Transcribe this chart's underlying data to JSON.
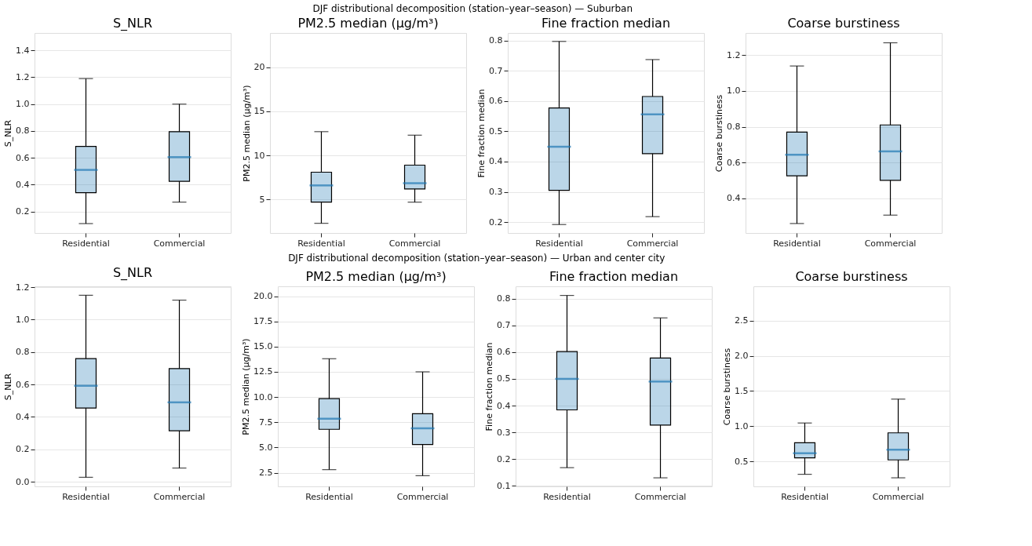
{
  "chart_data": [
    {
      "type": "box",
      "title": "S_NLR",
      "ylabel": "S_NLR",
      "annotations": [
        "DJF distributional decomposition (station–year–season) — Suburban"
      ],
      "categories": [
        "Residential",
        "Commercial"
      ],
      "ylim": [
        0.04,
        1.53
      ],
      "yticks": [
        0.2,
        0.4,
        0.6,
        0.8,
        {
          "value": 1.0,
          "label": "1.0"
        },
        1.2,
        1.4
      ],
      "grid": "y",
      "series": [
        {
          "color": "#1f77b4",
          "boxes": [
            {
              "low": 0.11,
              "q1": 0.34,
              "median": 0.51,
              "q3": 0.685,
              "high": 1.19
            },
            {
              "low": 0.27,
              "q1": 0.425,
              "median": 0.605,
              "q3": 0.795,
              "high": 1.0
            }
          ]
        }
      ]
    },
    {
      "type": "box",
      "title": "PM2.5 median (µg/m³)",
      "ylabel": "PM2.5 median (µg/m³)",
      "categories": [
        "Residential",
        "Commercial"
      ],
      "ylim": [
        1.2,
        23.9
      ],
      "yticks": [
        5,
        10,
        15,
        20
      ],
      "grid": "y",
      "series": [
        {
          "color": "#1f77b4",
          "boxes": [
            {
              "low": 2.3,
              "q1": 4.7,
              "median": 6.6,
              "q3": 8.1,
              "high": 12.7
            },
            {
              "low": 4.7,
              "q1": 6.2,
              "median": 6.85,
              "q3": 8.9,
              "high": 12.3
            }
          ]
        }
      ]
    },
    {
      "type": "box",
      "title": "Fine fraction median",
      "ylabel": "Fine fraction median",
      "categories": [
        "Residential",
        "Commercial"
      ],
      "ylim": [
        0.164,
        0.825
      ],
      "yticks": [
        0.2,
        0.3,
        0.4,
        0.5,
        0.6,
        0.7,
        0.8
      ],
      "grid": "y",
      "series": [
        {
          "color": "#1f77b4",
          "boxes": [
            {
              "low": 0.192,
              "q1": 0.305,
              "median": 0.449,
              "q3": 0.577,
              "high": 0.797
            },
            {
              "low": 0.218,
              "q1": 0.426,
              "median": 0.556,
              "q3": 0.615,
              "high": 0.737
            }
          ]
        }
      ]
    },
    {
      "type": "box",
      "title": "Coarse burstiness",
      "ylabel": "Coarse burstiness",
      "categories": [
        "Residential",
        "Commercial"
      ],
      "ylim": [
        0.205,
        1.325
      ],
      "yticks": [
        0.4,
        0.6,
        0.8,
        {
          "value": 1.0,
          "label": "1.0"
        },
        1.2
      ],
      "grid": "y",
      "series": [
        {
          "color": "#1f77b4",
          "boxes": [
            {
              "low": 0.258,
              "q1": 0.525,
              "median": 0.643,
              "q3": 0.77,
              "high": 1.14
            },
            {
              "low": 0.305,
              "q1": 0.5,
              "median": 0.662,
              "q3": 0.81,
              "high": 1.27
            }
          ]
        }
      ]
    },
    {
      "type": "box",
      "title": "S_NLR",
      "ylabel": "S_NLR",
      "annotations": [
        "DJF distributional decomposition (station–year–season) — Urban and center city"
      ],
      "categories": [
        "Residential",
        "Commercial"
      ],
      "ylim": [
        -0.028,
        1.205
      ],
      "yticks": [
        {
          "value": 0,
          "label": "0.0"
        },
        0.2,
        0.4,
        0.6,
        0.8,
        {
          "value": 1.0,
          "label": "1.0"
        },
        1.2
      ],
      "grid": "y",
      "series": [
        {
          "color": "#1f77b4",
          "boxes": [
            {
              "low": 0.028,
              "q1": 0.455,
              "median": 0.592,
              "q3": 0.76,
              "high": 1.15
            },
            {
              "low": 0.085,
              "q1": 0.315,
              "median": 0.49,
              "q3": 0.698,
              "high": 1.12
            }
          ]
        }
      ]
    },
    {
      "type": "box",
      "title": "PM2.5 median (µg/m³)",
      "ylabel": "PM2.5 median (µg/m³)",
      "categories": [
        "Residential",
        "Commercial"
      ],
      "ylim": [
        1.14,
        20.98
      ],
      "yticks": [
        2.5,
        {
          "value": 5,
          "label": "5.0"
        },
        7.5,
        {
          "value": 10,
          "label": "10.0"
        },
        12.5,
        {
          "value": 15,
          "label": "15.0"
        },
        17.5,
        {
          "value": 20,
          "label": "20.0"
        }
      ],
      "grid": "y",
      "series": [
        {
          "color": "#1f77b4",
          "boxes": [
            {
              "low": 2.8,
              "q1": 6.8,
              "median": 7.85,
              "q3": 9.85,
              "high": 13.8
            },
            {
              "low": 2.2,
              "q1": 5.3,
              "median": 6.9,
              "q3": 8.35,
              "high": 12.5
            }
          ]
        }
      ]
    },
    {
      "type": "box",
      "title": "Fine fraction median",
      "ylabel": "Fine fraction median",
      "categories": [
        "Residential",
        "Commercial"
      ],
      "ylim": [
        0.098,
        0.846
      ],
      "yticks": [
        0.1,
        0.2,
        0.3,
        0.4,
        0.5,
        0.6,
        0.7,
        0.8
      ],
      "grid": "y",
      "series": [
        {
          "color": "#1f77b4",
          "boxes": [
            {
              "low": 0.168,
              "q1": 0.384,
              "median": 0.5,
              "q3": 0.602,
              "high": 0.812
            },
            {
              "low": 0.13,
              "q1": 0.327,
              "median": 0.49,
              "q3": 0.578,
              "high": 0.728
            }
          ]
        }
      ]
    },
    {
      "type": "box",
      "title": "Coarse burstiness",
      "ylabel": "Coarse burstiness",
      "categories": [
        "Residential",
        "Commercial"
      ],
      "ylim": [
        0.143,
        2.99
      ],
      "yticks": [
        0.5,
        {
          "value": 1.0,
          "label": "1.0"
        },
        1.5,
        {
          "value": 2.0,
          "label": "2.0"
        },
        2.5
      ],
      "grid": "y",
      "series": [
        {
          "color": "#1f77b4",
          "boxes": [
            {
              "low": 0.315,
              "q1": 0.548,
              "median": 0.615,
              "q3": 0.765,
              "high": 1.045
            },
            {
              "low": 0.265,
              "q1": 0.52,
              "median": 0.665,
              "q3": 0.905,
              "high": 1.385
            }
          ]
        }
      ]
    }
  ]
}
